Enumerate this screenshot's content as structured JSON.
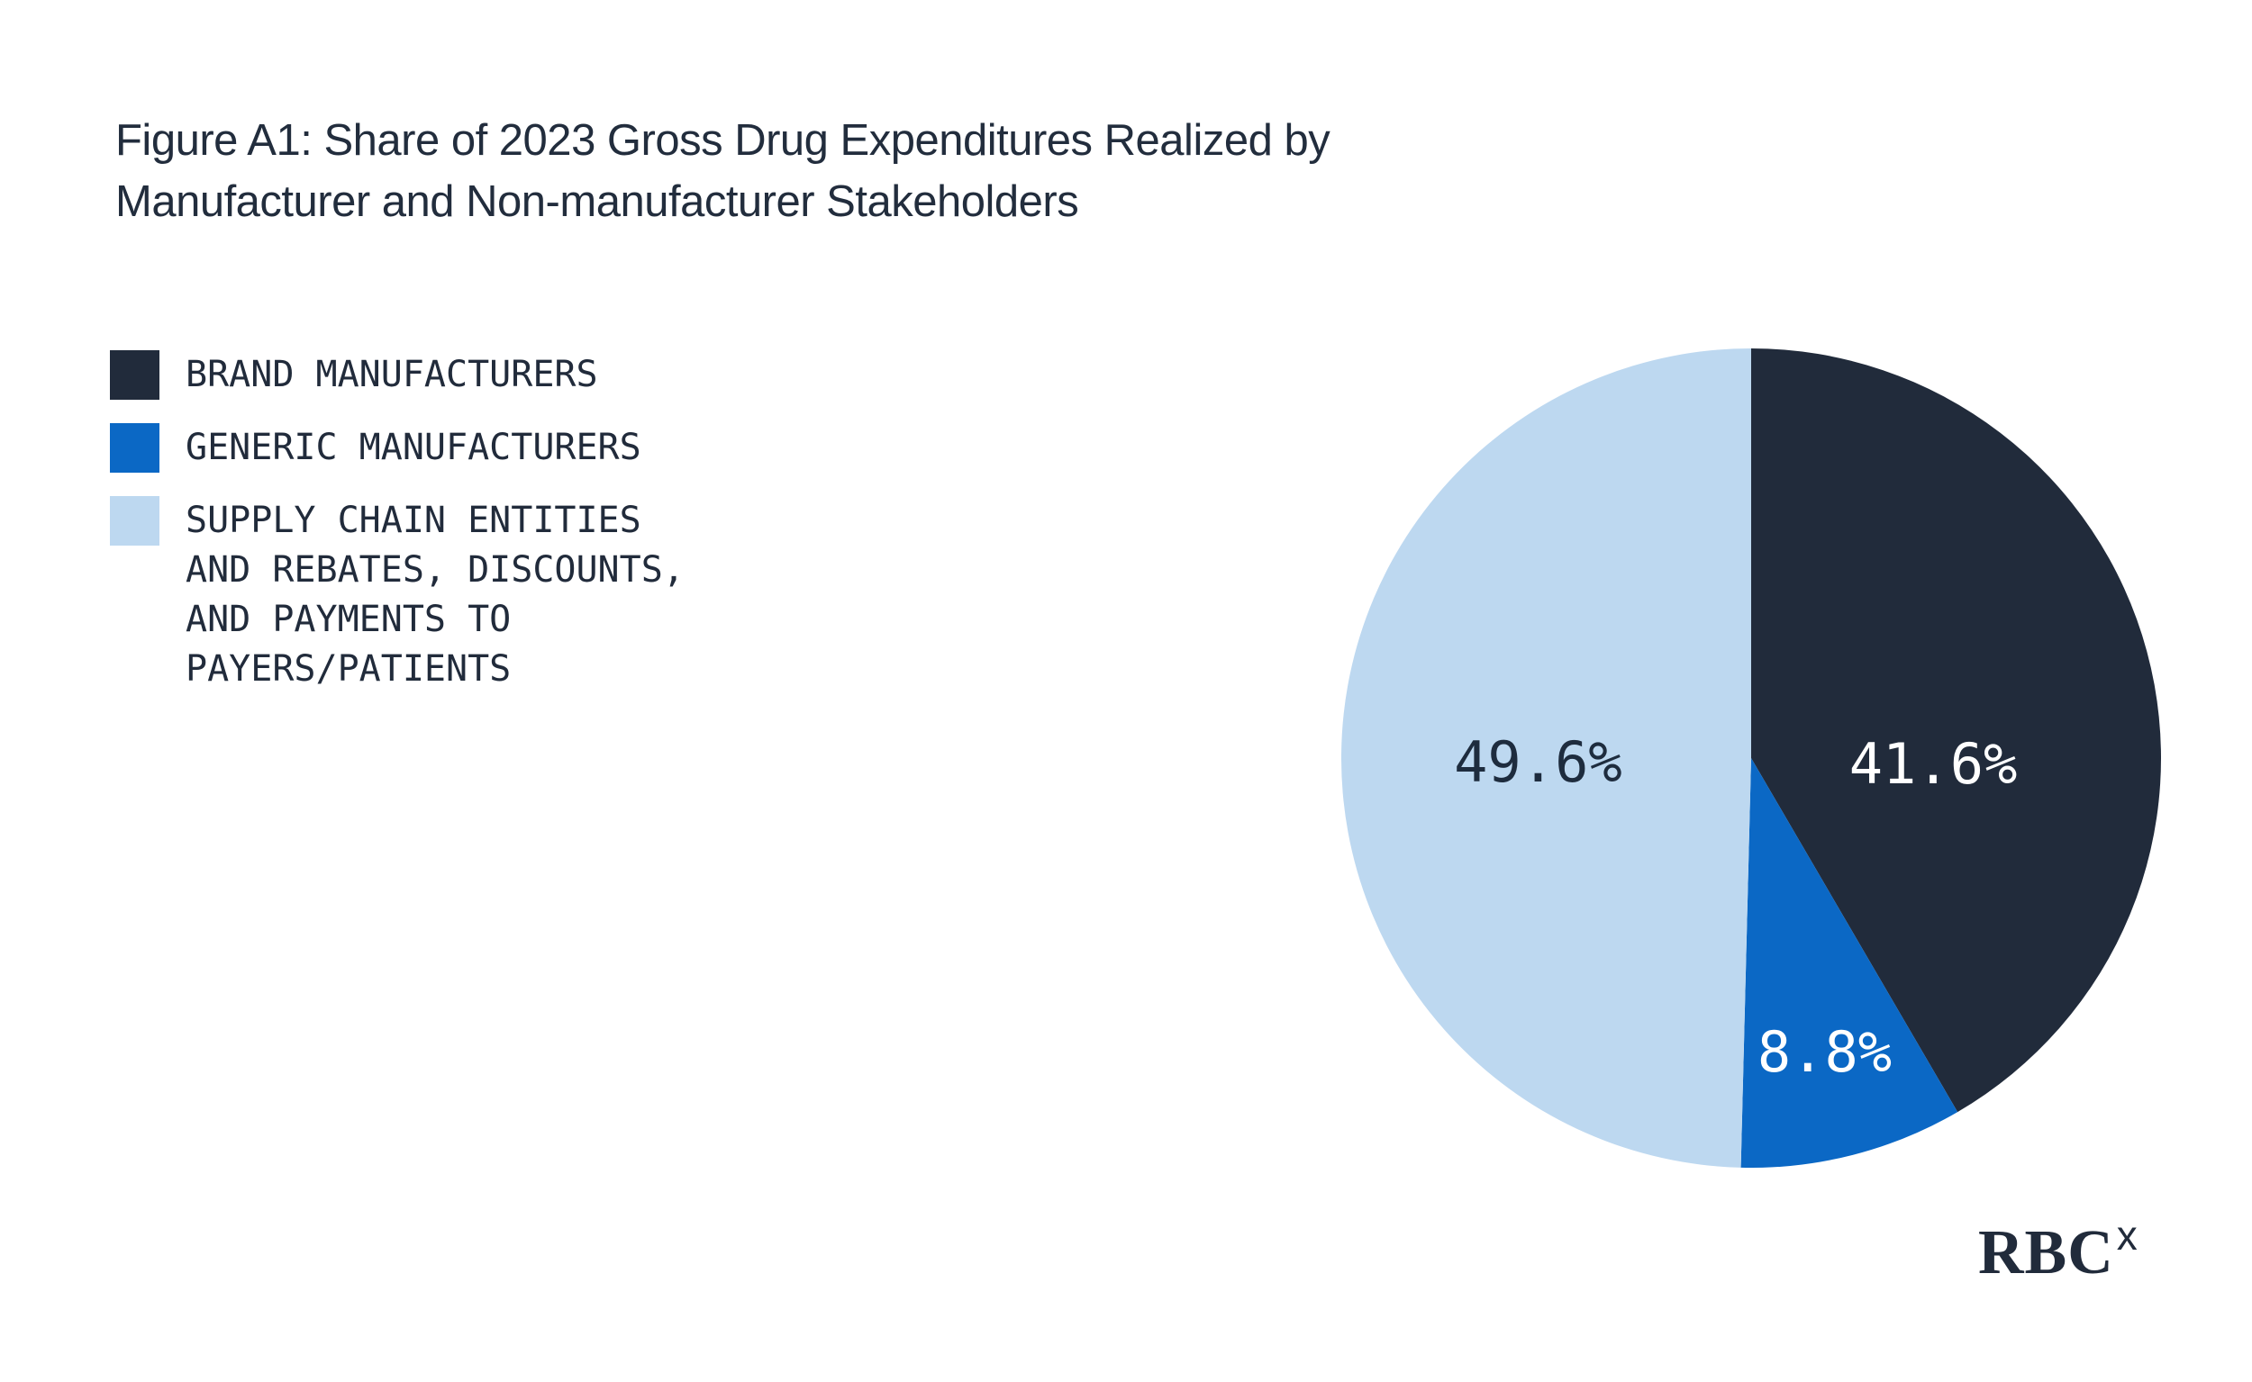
{
  "figure": {
    "title": "Figure A1: Share of 2023 Gross Drug Expenditures Realized by\nManufacturer and Non-manufacturer Stakeholders"
  },
  "legend": {
    "items": [
      {
        "label": "BRAND MANUFACTURERS",
        "color": "#212B3B"
      },
      {
        "label": "GENERIC MANUFACTURERS",
        "color": "#0B68C5"
      },
      {
        "label": "SUPPLY CHAIN ENTITIES\nAND REBATES, DISCOUNTS,\nAND PAYMENTS TO\nPAYERS/PATIENTS",
        "color": "#BDD8F0"
      }
    ]
  },
  "chart_data": {
    "type": "pie",
    "title": "Figure A1: Share of 2023 Gross Drug Expenditures Realized by Manufacturer and Non-manufacturer Stakeholders",
    "start_angle_deg": 0,
    "direction": "clockwise",
    "legend_position": "left",
    "slices": [
      {
        "name": "Brand Manufacturers",
        "value": 41.6,
        "label": "41.6%",
        "color": "#212B3B",
        "label_color": "#FFFFFF"
      },
      {
        "name": "Generic Manufacturers",
        "value": 8.8,
        "label": "8.8%",
        "color": "#0B68C5",
        "label_color": "#FFFFFF"
      },
      {
        "name": "Supply Chain Entities and Rebates, Discounts, and Payments to Payers/Patients",
        "value": 49.6,
        "label": "49.6%",
        "color": "#BDD8F0",
        "label_color": "#1E2C3E"
      }
    ]
  },
  "logo": {
    "text": "RBC",
    "superscript": "x"
  }
}
